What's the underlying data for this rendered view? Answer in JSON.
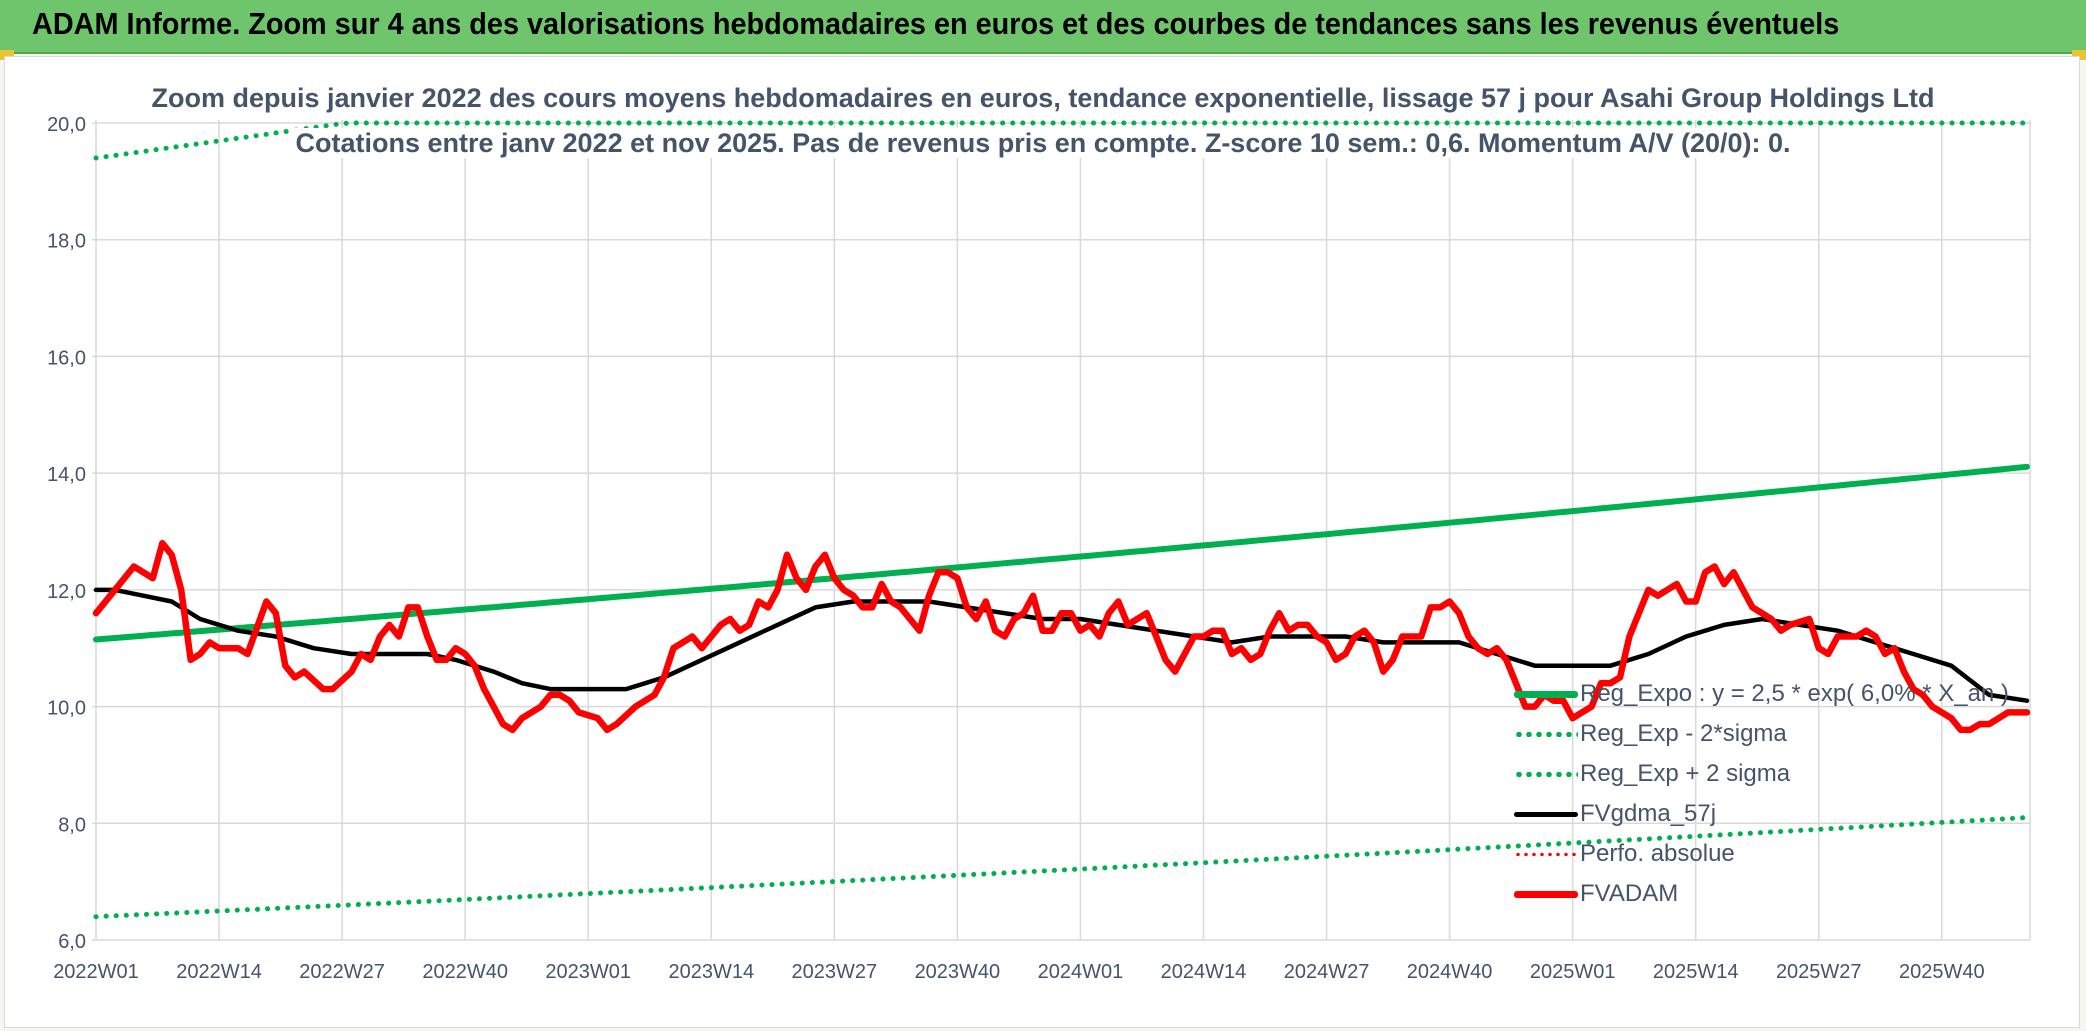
{
  "banner": {
    "title": "ADAM Informe. Zoom sur 4 ans des valorisations hebdomadaires en euros et des courbes de tendances sans les revenus éventuels"
  },
  "chart_data": {
    "type": "line",
    "title": "Zoom depuis janvier 2022 des cours moyens hebdomadaires en euros, tendance exponentielle, lissage 57 j pour Asahi Group Holdings Ltd",
    "subtitle": "Cotations entre janv 2022 et nov 2025. Pas de revenus pris en compte. Z-score 10 sem.: 0,6. Momentum A/V (20/0): 0.",
    "xlabel": "",
    "ylabel": "",
    "ylim": [
      6,
      20
    ],
    "yticks": [
      "6,0",
      "8,0",
      "10,0",
      "12,0",
      "14,0",
      "16,0",
      "18,0",
      "20,0"
    ],
    "yvalues": [
      6,
      8,
      10,
      12,
      14,
      16,
      18,
      20
    ],
    "x_tick_labels": [
      "2022W01",
      "2022W14",
      "2022W27",
      "2022W40",
      "2023W01",
      "2023W14",
      "2023W27",
      "2023W40",
      "2024W01",
      "2024W14",
      "2024W27",
      "2024W40",
      "2025W01",
      "2025W14",
      "2025W27",
      "2025W40"
    ],
    "x_tick_weeks": [
      0,
      13,
      26,
      39,
      52,
      65,
      78,
      91,
      104,
      117,
      130,
      143,
      156,
      169,
      182,
      195
    ],
    "week_count": 205,
    "grid": true,
    "legend_position": "bottom-right",
    "colors": {
      "trend": "#00b050",
      "bands": "#00b050",
      "fvgdma": "#000000",
      "perfo": "#ff0000",
      "fvadam": "#ff0000",
      "grid": "#d9d9d9",
      "axis_text": "#44546a"
    },
    "series": [
      {
        "name": "Reg_Expo : y = 2,5 * exp( 6,0% * X_an )",
        "style": "thick",
        "key": "trend",
        "formula": {
          "start": 11.15,
          "growth_per_year": 0.06
        }
      },
      {
        "name": "Reg_Exp - 2*sigma",
        "style": "dotted",
        "key": "low_band",
        "formula": {
          "start": 6.4,
          "growth_per_year": 0.06
        }
      },
      {
        "name": "Reg_Exp + 2 sigma",
        "style": "dotted",
        "key": "high_band",
        "formula": {
          "start": 19.4,
          "growth_per_year": 0.06,
          "cap": 20.0
        }
      },
      {
        "name": "FVgdma_57j",
        "style": "medium",
        "key": "fvgdma",
        "points": [
          [
            0,
            12.0
          ],
          [
            2,
            12.0
          ],
          [
            5,
            11.9
          ],
          [
            8,
            11.8
          ],
          [
            11,
            11.5
          ],
          [
            15,
            11.3
          ],
          [
            19,
            11.2
          ],
          [
            23,
            11.0
          ],
          [
            27,
            10.9
          ],
          [
            31,
            10.9
          ],
          [
            35,
            10.9
          ],
          [
            38,
            10.8
          ],
          [
            42,
            10.6
          ],
          [
            45,
            10.4
          ],
          [
            48,
            10.3
          ],
          [
            52,
            10.3
          ],
          [
            56,
            10.3
          ],
          [
            60,
            10.5
          ],
          [
            64,
            10.8
          ],
          [
            68,
            11.1
          ],
          [
            72,
            11.4
          ],
          [
            76,
            11.7
          ],
          [
            80,
            11.8
          ],
          [
            84,
            11.8
          ],
          [
            88,
            11.8
          ],
          [
            92,
            11.7
          ],
          [
            96,
            11.6
          ],
          [
            100,
            11.5
          ],
          [
            104,
            11.5
          ],
          [
            108,
            11.4
          ],
          [
            112,
            11.3
          ],
          [
            116,
            11.2
          ],
          [
            120,
            11.1
          ],
          [
            124,
            11.2
          ],
          [
            128,
            11.2
          ],
          [
            132,
            11.2
          ],
          [
            136,
            11.1
          ],
          [
            140,
            11.1
          ],
          [
            144,
            11.1
          ],
          [
            148,
            10.9
          ],
          [
            152,
            10.7
          ],
          [
            156,
            10.7
          ],
          [
            160,
            10.7
          ],
          [
            164,
            10.9
          ],
          [
            168,
            11.2
          ],
          [
            172,
            11.4
          ],
          [
            176,
            11.5
          ],
          [
            180,
            11.4
          ],
          [
            184,
            11.3
          ],
          [
            188,
            11.1
          ],
          [
            192,
            10.9
          ],
          [
            196,
            10.7
          ],
          [
            200,
            10.2
          ],
          [
            204,
            10.1
          ]
        ]
      },
      {
        "name": "Perfo. absolue",
        "style": "dotted-thin",
        "key": "perfo",
        "points": []
      },
      {
        "name": "FVADAM",
        "style": "thick",
        "key": "fvadam",
        "points": [
          [
            0,
            11.6
          ],
          [
            2,
            12.0
          ],
          [
            4,
            12.4
          ],
          [
            6,
            12.2
          ],
          [
            7,
            12.8
          ],
          [
            8,
            12.6
          ],
          [
            9,
            12.0
          ],
          [
            10,
            10.8
          ],
          [
            11,
            10.9
          ],
          [
            12,
            11.1
          ],
          [
            13,
            11.0
          ],
          [
            15,
            11.0
          ],
          [
            16,
            10.9
          ],
          [
            18,
            11.8
          ],
          [
            19,
            11.6
          ],
          [
            20,
            10.7
          ],
          [
            21,
            10.5
          ],
          [
            22,
            10.6
          ],
          [
            24,
            10.3
          ],
          [
            25,
            10.3
          ],
          [
            27,
            10.6
          ],
          [
            28,
            10.9
          ],
          [
            29,
            10.8
          ],
          [
            30,
            11.2
          ],
          [
            31,
            11.4
          ],
          [
            32,
            11.2
          ],
          [
            33,
            11.7
          ],
          [
            34,
            11.7
          ],
          [
            35,
            11.2
          ],
          [
            36,
            10.8
          ],
          [
            37,
            10.8
          ],
          [
            38,
            11.0
          ],
          [
            39,
            10.9
          ],
          [
            40,
            10.7
          ],
          [
            41,
            10.3
          ],
          [
            42,
            10.0
          ],
          [
            43,
            9.7
          ],
          [
            44,
            9.6
          ],
          [
            45,
            9.8
          ],
          [
            47,
            10.0
          ],
          [
            48,
            10.2
          ],
          [
            49,
            10.2
          ],
          [
            50,
            10.1
          ],
          [
            51,
            9.9
          ],
          [
            53,
            9.8
          ],
          [
            54,
            9.6
          ],
          [
            55,
            9.7
          ],
          [
            57,
            10.0
          ],
          [
            58,
            10.1
          ],
          [
            59,
            10.2
          ],
          [
            60,
            10.5
          ],
          [
            61,
            11.0
          ],
          [
            62,
            11.1
          ],
          [
            63,
            11.2
          ],
          [
            64,
            11.0
          ],
          [
            65,
            11.2
          ],
          [
            66,
            11.4
          ],
          [
            67,
            11.5
          ],
          [
            68,
            11.3
          ],
          [
            69,
            11.4
          ],
          [
            70,
            11.8
          ],
          [
            71,
            11.7
          ],
          [
            72,
            12.0
          ],
          [
            73,
            12.6
          ],
          [
            74,
            12.2
          ],
          [
            75,
            12.0
          ],
          [
            76,
            12.4
          ],
          [
            77,
            12.6
          ],
          [
            78,
            12.2
          ],
          [
            79,
            12.0
          ],
          [
            80,
            11.9
          ],
          [
            81,
            11.7
          ],
          [
            82,
            11.7
          ],
          [
            83,
            12.1
          ],
          [
            84,
            11.8
          ],
          [
            85,
            11.7
          ],
          [
            86,
            11.5
          ],
          [
            87,
            11.3
          ],
          [
            88,
            11.9
          ],
          [
            89,
            12.3
          ],
          [
            90,
            12.3
          ],
          [
            91,
            12.2
          ],
          [
            92,
            11.7
          ],
          [
            93,
            11.5
          ],
          [
            94,
            11.8
          ],
          [
            95,
            11.3
          ],
          [
            96,
            11.2
          ],
          [
            97,
            11.5
          ],
          [
            98,
            11.6
          ],
          [
            99,
            11.9
          ],
          [
            100,
            11.3
          ],
          [
            101,
            11.3
          ],
          [
            102,
            11.6
          ],
          [
            103,
            11.6
          ],
          [
            104,
            11.3
          ],
          [
            105,
            11.4
          ],
          [
            106,
            11.2
          ],
          [
            107,
            11.6
          ],
          [
            108,
            11.8
          ],
          [
            109,
            11.4
          ],
          [
            110,
            11.5
          ],
          [
            111,
            11.6
          ],
          [
            112,
            11.2
          ],
          [
            113,
            10.8
          ],
          [
            114,
            10.6
          ],
          [
            115,
            10.9
          ],
          [
            116,
            11.2
          ],
          [
            117,
            11.2
          ],
          [
            118,
            11.3
          ],
          [
            119,
            11.3
          ],
          [
            120,
            10.9
          ],
          [
            121,
            11.0
          ],
          [
            122,
            10.8
          ],
          [
            123,
            10.9
          ],
          [
            124,
            11.3
          ],
          [
            125,
            11.6
          ],
          [
            126,
            11.3
          ],
          [
            127,
            11.4
          ],
          [
            128,
            11.4
          ],
          [
            129,
            11.2
          ],
          [
            130,
            11.1
          ],
          [
            131,
            10.8
          ],
          [
            132,
            10.9
          ],
          [
            133,
            11.2
          ],
          [
            134,
            11.3
          ],
          [
            135,
            11.1
          ],
          [
            136,
            10.6
          ],
          [
            137,
            10.8
          ],
          [
            138,
            11.2
          ],
          [
            139,
            11.2
          ],
          [
            140,
            11.2
          ],
          [
            141,
            11.7
          ],
          [
            142,
            11.7
          ],
          [
            143,
            11.8
          ],
          [
            144,
            11.6
          ],
          [
            145,
            11.2
          ],
          [
            146,
            11.0
          ],
          [
            147,
            10.9
          ],
          [
            148,
            11.0
          ],
          [
            149,
            10.8
          ],
          [
            150,
            10.4
          ],
          [
            151,
            10.0
          ],
          [
            152,
            10.0
          ],
          [
            153,
            10.2
          ],
          [
            154,
            10.1
          ],
          [
            155,
            10.1
          ],
          [
            156,
            9.8
          ],
          [
            157,
            9.9
          ],
          [
            158,
            10.0
          ],
          [
            159,
            10.4
          ],
          [
            160,
            10.4
          ],
          [
            161,
            10.5
          ],
          [
            162,
            11.2
          ],
          [
            163,
            11.6
          ],
          [
            164,
            12.0
          ],
          [
            165,
            11.9
          ],
          [
            166,
            12.0
          ],
          [
            167,
            12.1
          ],
          [
            168,
            11.8
          ],
          [
            169,
            11.8
          ],
          [
            170,
            12.3
          ],
          [
            171,
            12.4
          ],
          [
            172,
            12.1
          ],
          [
            173,
            12.3
          ],
          [
            174,
            12.0
          ],
          [
            175,
            11.7
          ],
          [
            176,
            11.6
          ],
          [
            177,
            11.5
          ],
          [
            178,
            11.3
          ],
          [
            179,
            11.4
          ],
          [
            181,
            11.5
          ],
          [
            182,
            11.0
          ],
          [
            183,
            10.9
          ],
          [
            184,
            11.2
          ],
          [
            186,
            11.2
          ],
          [
            187,
            11.3
          ],
          [
            188,
            11.2
          ],
          [
            189,
            10.9
          ],
          [
            190,
            11.0
          ],
          [
            191,
            10.6
          ],
          [
            192,
            10.3
          ],
          [
            193,
            10.2
          ],
          [
            194,
            10.0
          ],
          [
            195,
            9.9
          ],
          [
            196,
            9.8
          ],
          [
            197,
            9.6
          ],
          [
            198,
            9.6
          ],
          [
            199,
            9.7
          ],
          [
            200,
            9.7
          ],
          [
            201,
            9.8
          ],
          [
            202,
            9.9
          ],
          [
            204,
            9.9
          ]
        ]
      }
    ]
  }
}
